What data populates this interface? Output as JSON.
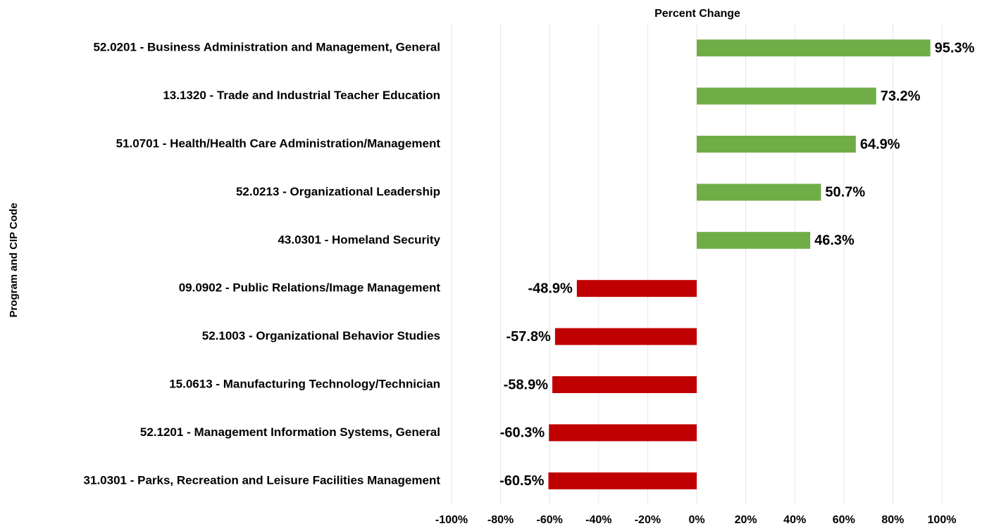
{
  "chart_data": {
    "type": "hbar",
    "title": "Percent Change",
    "y_label": "Program and CIP Code",
    "categories": [
      "52.0201 - Business Administration and Management, General",
      "13.1320 - Trade and Industrial Teacher Education",
      "51.0701 - Health/Health Care Administration/Management",
      "52.0213 - Organizational Leadership",
      "43.0301 - Homeland Security",
      "09.0902 - Public Relations/Image Management",
      "52.1003 - Organizational Behavior Studies",
      "15.0613 - Manufacturing Technology/Technician",
      "52.1201 - Management Information Systems, General",
      "31.0301 - Parks, Recreation and Leisure Facilities Management"
    ],
    "values": [
      95.3,
      73.2,
      64.9,
      50.7,
      46.3,
      -48.9,
      -57.8,
      -58.9,
      -60.3,
      -60.5
    ],
    "value_labels": [
      "95.3%",
      "73.2%",
      "64.9%",
      "50.7%",
      "46.3%",
      "-48.9%",
      "-57.8%",
      "-58.9%",
      "-60.3%",
      "-60.5%"
    ],
    "colors": [
      "#70ad47",
      "#70ad47",
      "#70ad47",
      "#70ad47",
      "#70ad47",
      "#c00000",
      "#c00000",
      "#c00000",
      "#c00000",
      "#c00000"
    ],
    "xlim": [
      -100,
      100
    ],
    "xticks": [
      {
        "value": -100,
        "label": "-100%"
      },
      {
        "value": -80,
        "label": "-80%"
      },
      {
        "value": -60,
        "label": "-60%"
      },
      {
        "value": -40,
        "label": "-40%"
      },
      {
        "value": -20,
        "label": "-20%"
      },
      {
        "value": 0,
        "label": "0%"
      },
      {
        "value": 20,
        "label": "20%"
      },
      {
        "value": 40,
        "label": "40%"
      },
      {
        "value": 60,
        "label": "60%"
      },
      {
        "value": 80,
        "label": "80%"
      },
      {
        "value": 100,
        "label": "100%"
      }
    ],
    "grid": true
  }
}
